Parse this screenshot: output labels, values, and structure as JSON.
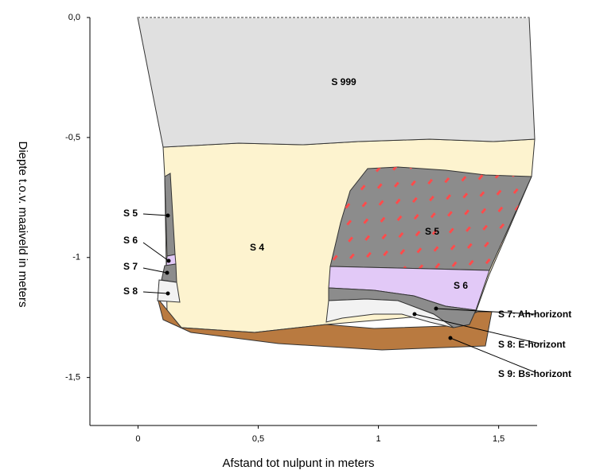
{
  "chart_data": {
    "type": "profile",
    "x_label": "Afstand tot nulpunt in meters",
    "y_label": "Diepte t.o.v. maaiveld in meters",
    "xlim": [
      -0.2,
      1.66
    ],
    "ylim": [
      -1.7,
      0
    ],
    "xticks": [
      0,
      {
        "value": 0.5,
        "label": "0,5"
      },
      1,
      {
        "value": 1.5,
        "label": "1,5"
      }
    ],
    "yticks": [
      {
        "value": 0,
        "label": "0,0"
      },
      {
        "value": -0.5,
        "label": "-0,5"
      },
      -1,
      {
        "value": -1.5,
        "label": "-1,5"
      }
    ],
    "labels": [
      "S 999",
      "S 4",
      "S 5",
      "S 6",
      "S 5",
      "S 6",
      "S 7",
      "S 8",
      "S 7: Ah-horizont",
      "S 8: E-horizont",
      "S 9: Bs-horizont"
    ]
  }
}
